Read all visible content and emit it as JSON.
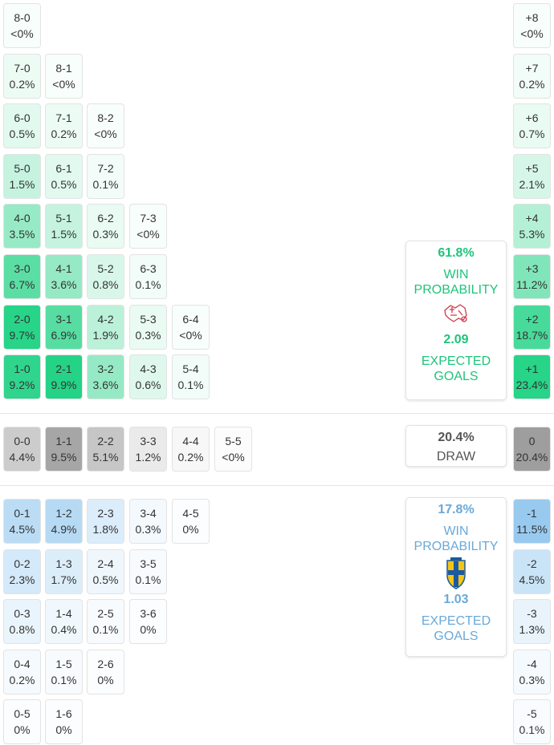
{
  "home_rows": [
    {
      "cells": [
        [
          "8-0",
          "<0%"
        ]
      ],
      "diff": [
        "+8",
        "<0%"
      ]
    },
    {
      "cells": [
        [
          "7-0",
          "0.2%"
        ],
        [
          "8-1",
          "<0%"
        ]
      ],
      "diff": [
        "+7",
        "0.2%"
      ]
    },
    {
      "cells": [
        [
          "6-0",
          "0.5%"
        ],
        [
          "7-1",
          "0.2%"
        ],
        [
          "8-2",
          "<0%"
        ]
      ],
      "diff": [
        "+6",
        "0.7%"
      ]
    },
    {
      "cells": [
        [
          "5-0",
          "1.5%"
        ],
        [
          "6-1",
          "0.5%"
        ],
        [
          "7-2",
          "0.1%"
        ]
      ],
      "diff": [
        "+5",
        "2.1%"
      ]
    },
    {
      "cells": [
        [
          "4-0",
          "3.5%"
        ],
        [
          "5-1",
          "1.5%"
        ],
        [
          "6-2",
          "0.3%"
        ],
        [
          "7-3",
          "<0%"
        ]
      ],
      "diff": [
        "+4",
        "5.3%"
      ]
    },
    {
      "cells": [
        [
          "3-0",
          "6.7%"
        ],
        [
          "4-1",
          "3.6%"
        ],
        [
          "5-2",
          "0.8%"
        ],
        [
          "6-3",
          "0.1%"
        ]
      ],
      "diff": [
        "+3",
        "11.2%"
      ]
    },
    {
      "cells": [
        [
          "2-0",
          "9.7%"
        ],
        [
          "3-1",
          "6.9%"
        ],
        [
          "4-2",
          "1.9%"
        ],
        [
          "5-3",
          "0.3%"
        ],
        [
          "6-4",
          "<0%"
        ]
      ],
      "diff": [
        "+2",
        "18.7%"
      ]
    },
    {
      "cells": [
        [
          "1-0",
          "9.2%"
        ],
        [
          "2-1",
          "9.9%"
        ],
        [
          "3-2",
          "3.6%"
        ],
        [
          "4-3",
          "0.6%"
        ],
        [
          "5-4",
          "0.1%"
        ]
      ],
      "diff": [
        "+1",
        "23.4%"
      ]
    }
  ],
  "draw_row": {
    "cells": [
      [
        "0-0",
        "4.4%"
      ],
      [
        "1-1",
        "9.5%"
      ],
      [
        "2-2",
        "5.1%"
      ],
      [
        "3-3",
        "1.2%"
      ],
      [
        "4-4",
        "0.2%"
      ],
      [
        "5-5",
        "<0%"
      ]
    ],
    "diff": [
      "0",
      "20.4%"
    ]
  },
  "away_rows": [
    {
      "cells": [
        [
          "0-1",
          "4.5%"
        ],
        [
          "1-2",
          "4.9%"
        ],
        [
          "2-3",
          "1.8%"
        ],
        [
          "3-4",
          "0.3%"
        ],
        [
          "4-5",
          "0%"
        ]
      ],
      "diff": [
        "-1",
        "11.5%"
      ]
    },
    {
      "cells": [
        [
          "0-2",
          "2.3%"
        ],
        [
          "1-3",
          "1.7%"
        ],
        [
          "2-4",
          "0.5%"
        ],
        [
          "3-5",
          "0.1%"
        ]
      ],
      "diff": [
        "-2",
        "4.5%"
      ]
    },
    {
      "cells": [
        [
          "0-3",
          "0.8%"
        ],
        [
          "1-4",
          "0.4%"
        ],
        [
          "2-5",
          "0.1%"
        ],
        [
          "3-6",
          "0%"
        ]
      ],
      "diff": [
        "-3",
        "1.3%"
      ]
    },
    {
      "cells": [
        [
          "0-4",
          "0.2%"
        ],
        [
          "1-5",
          "0.1%"
        ],
        [
          "2-6",
          "0%"
        ]
      ],
      "diff": [
        "-4",
        "0.3%"
      ]
    },
    {
      "cells": [
        [
          "0-5",
          "0%"
        ],
        [
          "1-6",
          "0%"
        ]
      ],
      "diff": [
        "-5",
        "0.1%"
      ]
    }
  ],
  "home_summary": {
    "win_pct": "61.8%",
    "win_label1": "WIN",
    "win_label2": "PROBABILITY",
    "xg": "2.09",
    "xg_label1": "EXPECTED",
    "xg_label2": "GOALS",
    "icon": "switzerland-crest-icon"
  },
  "draw_summary": {
    "pct": "20.4%",
    "label": "DRAW"
  },
  "away_summary": {
    "win_pct": "17.8%",
    "win_label1": "WIN",
    "win_label2": "PROBABILITY",
    "xg": "1.03",
    "xg_label1": "EXPECTED",
    "xg_label2": "GOALS",
    "icon": "sweden-crest-icon"
  },
  "colors": {
    "home": "#1fd283",
    "draw": "#9a9a9a",
    "away": "#8cc4ee"
  }
}
